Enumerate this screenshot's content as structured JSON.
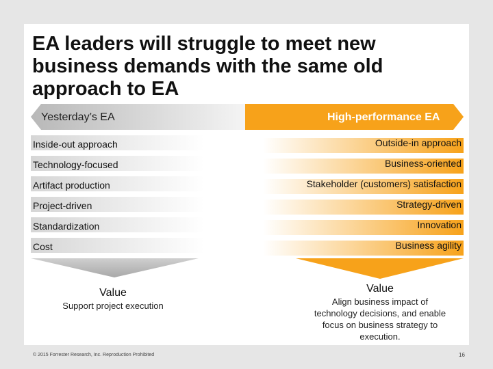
{
  "title": [
    "EA leaders will struggle to meet new",
    "business demands with the same old",
    "approach to EA"
  ],
  "left": {
    "header": "Yesterday’s EA",
    "items": [
      "Inside-out approach",
      "Technology-focused",
      "Artifact production",
      "Project-driven",
      "Standardization",
      "Cost"
    ],
    "value": "Value",
    "description": [
      "Support project execution"
    ]
  },
  "right": {
    "header": "High-performance EA",
    "items": [
      "Outside-in approach",
      "Business-oriented",
      "Stakeholder (customers) satisfaction",
      "Strategy-driven",
      "Innovation",
      "Business agility"
    ],
    "value": "Value",
    "description": [
      "Align business impact of",
      "technology decisions, and enable",
      "focus on business strategy to",
      "execution."
    ]
  },
  "footer": {
    "copyright": "© 2015 Forrester Research, Inc. Reproduction Prohibited",
    "page": "16"
  }
}
